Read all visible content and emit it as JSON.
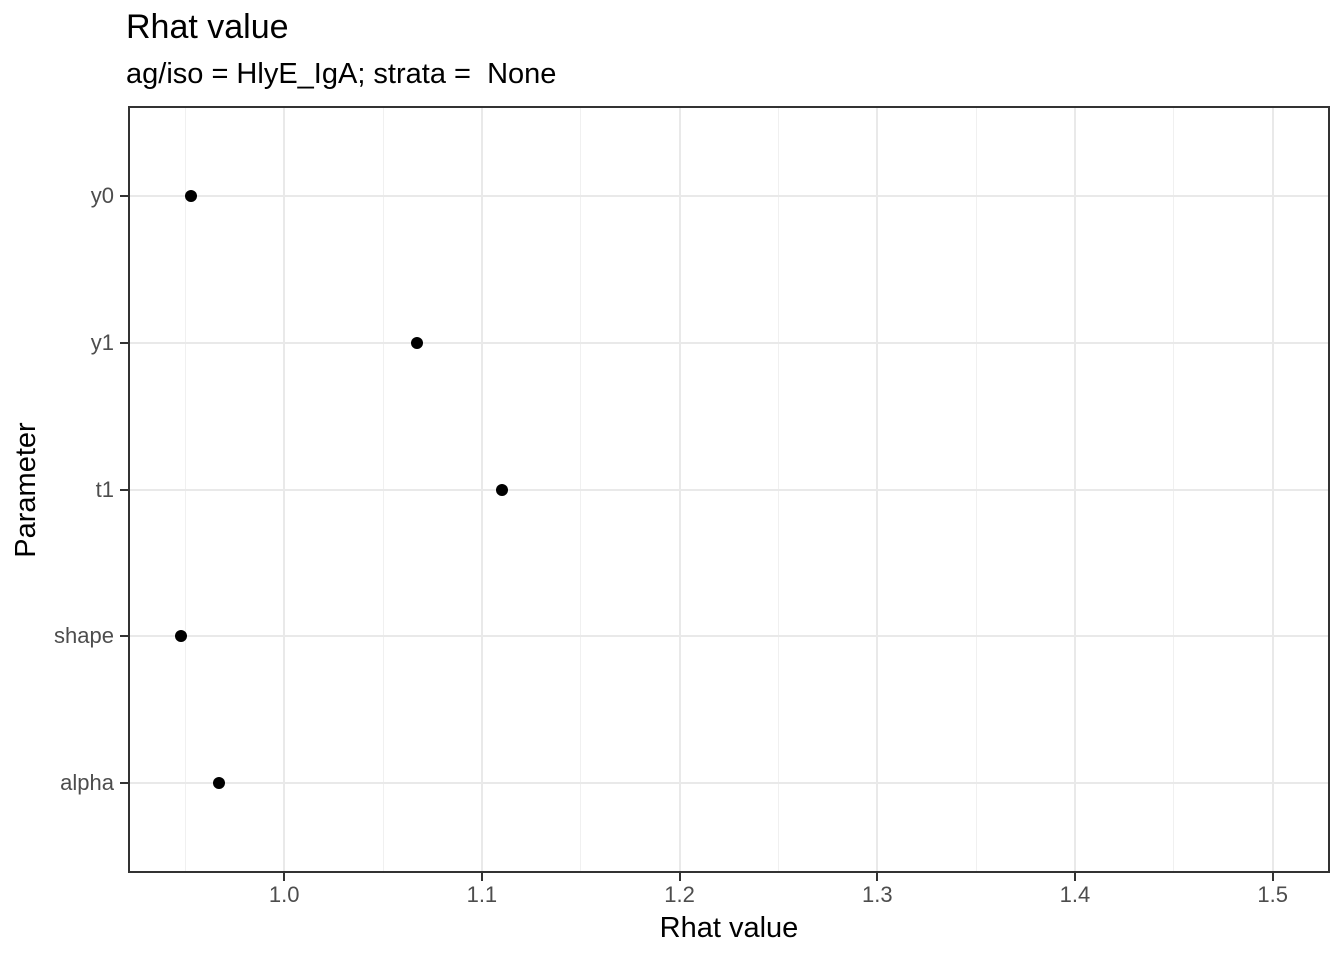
{
  "figure": {
    "title": "Rhat value",
    "subtitle": "ag/iso = HlyE_IgA; strata =  None",
    "x_axis_title": "Rhat value",
    "y_axis_title": "Parameter"
  },
  "chart_data": {
    "type": "scatter",
    "variant": "horizontal-dot-plot",
    "title": "Rhat value",
    "subtitle": "ag/iso = HlyE_IgA; strata =  None",
    "xlabel": "Rhat value",
    "ylabel": "Parameter",
    "categories": [
      "y0",
      "y1",
      "t1",
      "shape",
      "alpha"
    ],
    "values": [
      0.953,
      1.067,
      1.11,
      0.948,
      0.967
    ],
    "xlim": [
      0.922,
      1.528
    ],
    "x_major_ticks": [
      1.0,
      1.1,
      1.2,
      1.3,
      1.4,
      1.5
    ],
    "x_major_tick_labels": [
      "1.0",
      "1.1",
      "1.2",
      "1.3",
      "1.4",
      "1.5"
    ],
    "x_minor_ticks": [
      0.95,
      1.05,
      1.15,
      1.25,
      1.35,
      1.45
    ],
    "grid": "major-and-minor-x, major-y",
    "legend": "none",
    "colors": {
      "point": "#000000",
      "grid_major": "#e9e9e9",
      "grid_minor": "#f0f0f0",
      "panel_border": "#333333",
      "tick_mark": "#333333",
      "axis_text": "#4d4d4d",
      "title_text": "#000000",
      "background": "#ffffff"
    }
  }
}
